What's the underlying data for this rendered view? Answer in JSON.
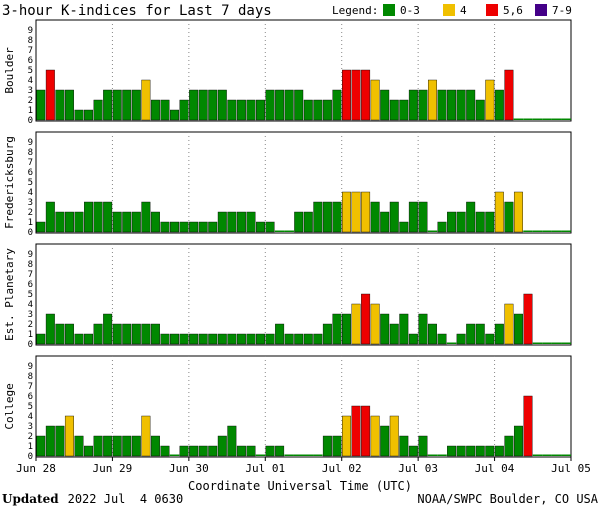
{
  "title": "3-hour K-indices for Last 7 days",
  "legend": {
    "label": "Legend:",
    "items": [
      {
        "text": "0-3",
        "color": "#008800"
      },
      {
        "text": "4",
        "color": "#f0c000"
      },
      {
        "text": "5,6",
        "color": "#ee0000"
      },
      {
        "text": "7-9",
        "color": "#440088"
      }
    ]
  },
  "chart_data": {
    "type": "bar",
    "xlabel": "Coordinate Universal Time (UTC)",
    "x_ticks": [
      "Jun 28",
      "Jun 29",
      "Jun 30",
      "Jul 01",
      "Jul 02",
      "Jul 03",
      "Jul 04",
      "Jul 05"
    ],
    "y_ticks": [
      "0",
      "1",
      "2",
      "3",
      "4",
      "5",
      "6",
      "7",
      "8",
      "9"
    ],
    "ylim": [
      0,
      9
    ],
    "slots": 56,
    "grid": "vertical-dotted",
    "panels": [
      {
        "name": "Boulder",
        "values": [
          3,
          5,
          3,
          3,
          1,
          1,
          2,
          3,
          3,
          3,
          3,
          4,
          2,
          2,
          1,
          2,
          3,
          3,
          3,
          3,
          2,
          2,
          2,
          2,
          3,
          3,
          3,
          3,
          2,
          2,
          2,
          3,
          5,
          5,
          5,
          4,
          3,
          2,
          2,
          3,
          3,
          4,
          3,
          3,
          3,
          3,
          2,
          4,
          3,
          5,
          0,
          0,
          0,
          0,
          0,
          0
        ]
      },
      {
        "name": "Fredericksburg",
        "values": [
          1,
          3,
          2,
          2,
          2,
          3,
          3,
          3,
          2,
          2,
          2,
          3,
          2,
          1,
          1,
          1,
          1,
          1,
          1,
          2,
          2,
          2,
          2,
          1,
          1,
          0,
          0,
          2,
          2,
          3,
          3,
          3,
          4,
          4,
          4,
          3,
          2,
          3,
          1,
          3,
          3,
          0,
          1,
          2,
          2,
          3,
          2,
          2,
          4,
          3,
          4,
          0,
          0,
          0,
          0,
          0
        ]
      },
      {
        "name": "Est. Planetary",
        "values": [
          1,
          3,
          2,
          2,
          1,
          1,
          2,
          3,
          2,
          2,
          2,
          2,
          2,
          1,
          1,
          1,
          1,
          1,
          1,
          1,
          1,
          1,
          1,
          1,
          1,
          2,
          1,
          1,
          1,
          1,
          2,
          3,
          3,
          4,
          5,
          4,
          3,
          2,
          3,
          1,
          3,
          2,
          1,
          0,
          1,
          2,
          2,
          1,
          2,
          4,
          3,
          5,
          0,
          0,
          0,
          0
        ]
      },
      {
        "name": "College",
        "values": [
          2,
          3,
          3,
          4,
          2,
          1,
          2,
          2,
          2,
          2,
          2,
          4,
          2,
          1,
          0,
          1,
          1,
          1,
          1,
          2,
          3,
          1,
          1,
          0,
          1,
          1,
          0,
          0,
          0,
          0,
          2,
          2,
          4,
          5,
          5,
          4,
          3,
          4,
          2,
          1,
          2,
          0,
          0,
          1,
          1,
          1,
          1,
          1,
          1,
          2,
          3,
          6,
          0,
          0,
          0,
          0
        ]
      }
    ]
  },
  "footer": {
    "updated_label": "Updated",
    "updated_value": "2022 Jul  4 0630",
    "credit": "NOAA/SWPC Boulder, CO USA"
  }
}
